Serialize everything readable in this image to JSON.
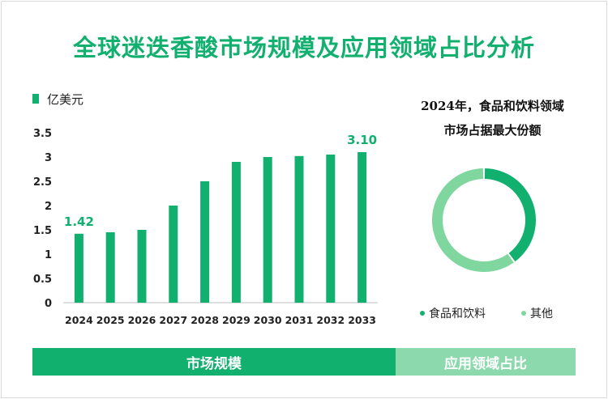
{
  "title": "全球迷迭香酸市场规模及应用领域占比分析",
  "colors": {
    "primary": "#12b06f",
    "secondary": "#7fd69f",
    "text": "#222222"
  },
  "chart_data": [
    {
      "type": "bar",
      "unit_label": "亿美元",
      "categories": [
        "2024",
        "2025",
        "2026",
        "2027",
        "2028",
        "2029",
        "2030",
        "2031",
        "2032",
        "2033"
      ],
      "values": [
        1.42,
        1.45,
        1.5,
        2.0,
        2.5,
        2.9,
        3.0,
        3.02,
        3.05,
        3.1
      ],
      "data_labels": {
        "first": "1.42",
        "last": "3.10"
      },
      "yticks": [
        "0",
        "0.5",
        "1",
        "1.5",
        "2",
        "2.5",
        "3",
        "3.5"
      ],
      "ylim": [
        0,
        3.5
      ],
      "grid": false
    },
    {
      "type": "pie",
      "title_line1": "2024年，食品和饮料领域",
      "title_line2": "市场占据最大份额",
      "labels": [
        "食品和饮料",
        "其他"
      ],
      "values": [
        0.4,
        0.6
      ],
      "colors": [
        "#12b06f",
        "#7fd69f"
      ],
      "legend_position": "bottom"
    }
  ],
  "footer": {
    "left": "市场规模",
    "right": "应用领域占比"
  }
}
